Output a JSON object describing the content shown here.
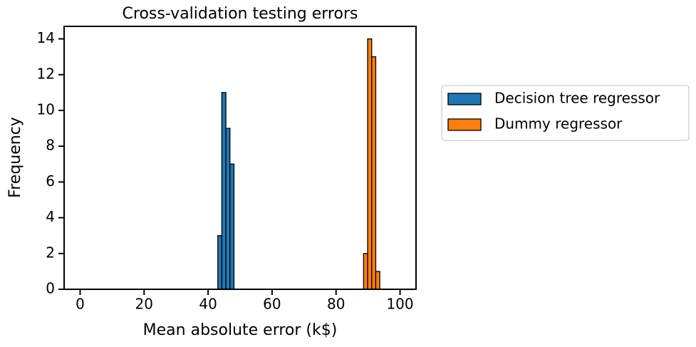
{
  "chart_data": {
    "type": "histogram",
    "title": "Cross-validation testing errors",
    "x_label": "Mean absolute error (k$)",
    "y_label": "Frequency",
    "series": [
      {
        "name": "Decision tree regressor",
        "color": "#1f77b4",
        "bins": [
          43.04,
          44.3,
          45.57,
          46.84,
          48.1
        ],
        "values": [
          3,
          11,
          9,
          7
        ]
      },
      {
        "name": "Dummy regressor",
        "color": "#ff7f0e",
        "bins": [
          88.61,
          89.87,
          91.14,
          92.41,
          93.67
        ],
        "values": [
          2,
          14,
          13,
          1
        ]
      }
    ],
    "xlim": [
      -5,
      105
    ],
    "xticks": [
      0,
      20,
      40,
      60,
      80,
      100
    ],
    "ylim": [
      0,
      14.7
    ],
    "yticks": [
      0,
      2,
      4,
      6,
      8,
      10,
      12,
      14
    ],
    "legend": "outside-right"
  }
}
